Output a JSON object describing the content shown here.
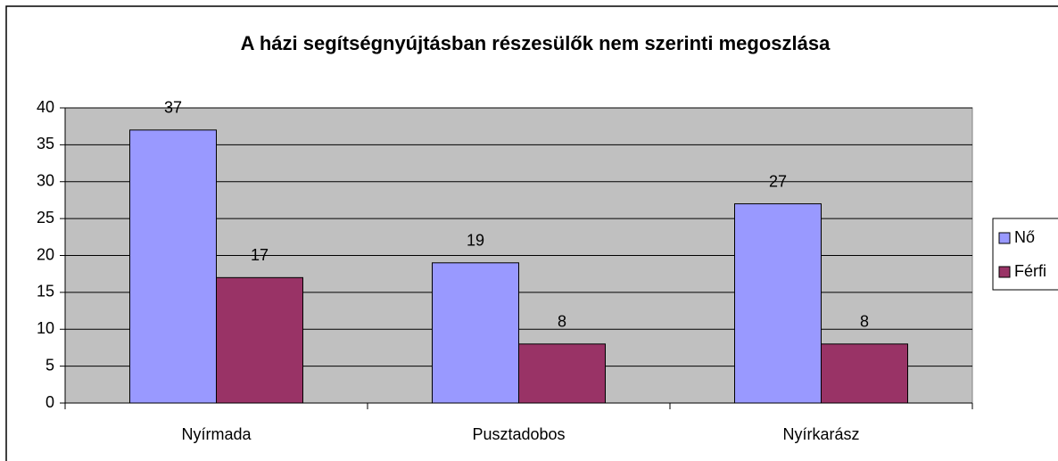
{
  "chart_data": {
    "type": "bar",
    "title": "A házi segítségnyújtásban részesülők nem szerinti megoszlása",
    "categories": [
      "Nyírmada",
      "Pusztadobos",
      "Nyírkarász"
    ],
    "series": [
      {
        "name": "Nő",
        "color": "#9999ff",
        "values": [
          37,
          19,
          27
        ]
      },
      {
        "name": "Férfi",
        "color": "#993366",
        "values": [
          17,
          8,
          8
        ]
      }
    ],
    "ylim": [
      0,
      40
    ],
    "yticks": [
      0,
      5,
      10,
      15,
      20,
      25,
      30,
      35,
      40
    ],
    "grid": true,
    "legend": "right"
  }
}
